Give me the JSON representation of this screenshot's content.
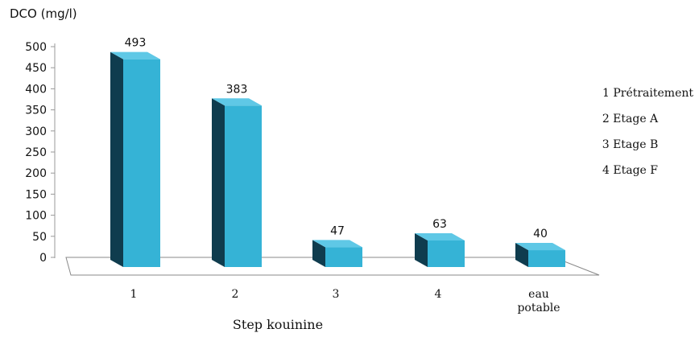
{
  "chart_data": {
    "type": "bar",
    "categories": [
      "1",
      "2",
      "3",
      "4",
      "eau potable"
    ],
    "category_lines": [
      [
        "1"
      ],
      [
        "2"
      ],
      [
        "3"
      ],
      [
        "4"
      ],
      [
        "eau",
        "potable"
      ]
    ],
    "values": [
      493,
      383,
      47,
      63,
      40
    ],
    "data_labels": [
      "493",
      "383",
      "47",
      "63",
      "40"
    ],
    "ylabel": "DCO (mg/l)",
    "xlabel": "Step kouinine",
    "ylim": [
      0,
      500
    ],
    "yticks": [
      0,
      50,
      100,
      150,
      200,
      250,
      300,
      350,
      400,
      450,
      500
    ],
    "three_d": true,
    "grid": false,
    "colors": {
      "front": "#35b3d6",
      "side": "#0f3c4e",
      "top": "#5fc8e6",
      "floor_stroke": "#888888"
    },
    "legend_position": "right",
    "legend": [
      "1 Prétraitement",
      "2 Etage A",
      "3 Etage B",
      "4 Etage F"
    ]
  }
}
